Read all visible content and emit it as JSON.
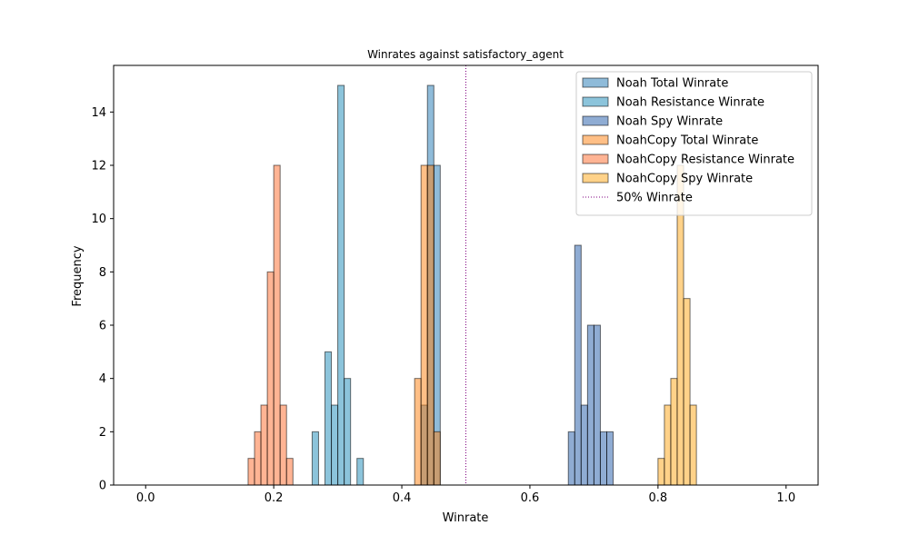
{
  "chart_data": {
    "type": "bar",
    "title": "Winrates against satisfactory_agent",
    "xlabel": "Winrate",
    "ylabel": "Frequency",
    "xlim": [
      -0.05,
      1.05
    ],
    "ylim": [
      0,
      15.75
    ],
    "bin_width": 0.01,
    "xticks": [
      {
        "value": 0.0,
        "label": "0.0"
      },
      {
        "value": 0.2,
        "label": "0.2"
      },
      {
        "value": 0.4,
        "label": "0.4"
      },
      {
        "value": 0.6,
        "label": "0.6"
      },
      {
        "value": 0.8,
        "label": "0.8"
      },
      {
        "value": 1.0,
        "label": "1.0"
      }
    ],
    "yticks": [
      {
        "value": 0,
        "label": "0"
      },
      {
        "value": 2,
        "label": "2"
      },
      {
        "value": 4,
        "label": "4"
      },
      {
        "value": 6,
        "label": "6"
      },
      {
        "value": 8,
        "label": "8"
      },
      {
        "value": 10,
        "label": "10"
      },
      {
        "value": 12,
        "label": "12"
      },
      {
        "value": 14,
        "label": "14"
      }
    ],
    "grid": false,
    "legend_position": "top-right",
    "series": [
      {
        "name": "Noah Total Winrate",
        "color": "#1f77b4",
        "bins": [
          {
            "x": 0.43,
            "y": 3
          },
          {
            "x": 0.44,
            "y": 15
          },
          {
            "x": 0.45,
            "y": 12
          }
        ]
      },
      {
        "name": "Noah Resistance Winrate",
        "color": "#1a8ab8",
        "bins": [
          {
            "x": 0.26,
            "y": 2
          },
          {
            "x": 0.28,
            "y": 5
          },
          {
            "x": 0.29,
            "y": 3
          },
          {
            "x": 0.3,
            "y": 15
          },
          {
            "x": 0.31,
            "y": 4
          },
          {
            "x": 0.33,
            "y": 1
          }
        ]
      },
      {
        "name": "Noah Spy Winrate",
        "color": "#1f5aa8",
        "bins": [
          {
            "x": 0.66,
            "y": 2
          },
          {
            "x": 0.67,
            "y": 9
          },
          {
            "x": 0.68,
            "y": 3
          },
          {
            "x": 0.69,
            "y": 6
          },
          {
            "x": 0.7,
            "y": 6
          },
          {
            "x": 0.71,
            "y": 2
          },
          {
            "x": 0.72,
            "y": 2
          }
        ]
      },
      {
        "name": "NoahCopy Total Winrate",
        "color": "#ff7f0e",
        "bins": [
          {
            "x": 0.42,
            "y": 4
          },
          {
            "x": 0.43,
            "y": 12
          },
          {
            "x": 0.44,
            "y": 12
          },
          {
            "x": 0.45,
            "y": 2
          }
        ]
      },
      {
        "name": "NoahCopy Resistance Winrate",
        "color": "#ff6a2a",
        "bins": [
          {
            "x": 0.16,
            "y": 1
          },
          {
            "x": 0.17,
            "y": 2
          },
          {
            "x": 0.18,
            "y": 3
          },
          {
            "x": 0.19,
            "y": 8
          },
          {
            "x": 0.2,
            "y": 12
          },
          {
            "x": 0.21,
            "y": 3
          },
          {
            "x": 0.22,
            "y": 1
          }
        ]
      },
      {
        "name": "NoahCopy Spy Winrate",
        "color": "#ffa514",
        "bins": [
          {
            "x": 0.8,
            "y": 1
          },
          {
            "x": 0.81,
            "y": 3
          },
          {
            "x": 0.82,
            "y": 4
          },
          {
            "x": 0.83,
            "y": 12
          },
          {
            "x": 0.84,
            "y": 7
          },
          {
            "x": 0.85,
            "y": 3
          }
        ]
      }
    ],
    "reference_line": {
      "name": "50% Winrate",
      "x": 0.5,
      "color": "#800080",
      "style": "dotted"
    }
  }
}
